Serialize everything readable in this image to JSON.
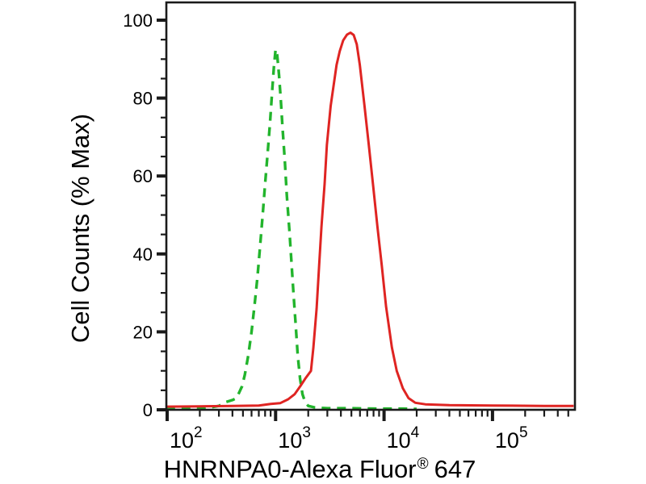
{
  "figure": {
    "background": "#ffffff",
    "xlabel_parts": {
      "main": "HNRNPA0-Alexa Fluor",
      "sup": "®",
      "tail": "647"
    }
  },
  "chart_data": {
    "type": "line",
    "subtype": "flow-cytometry-histogram-overlay",
    "title": "",
    "xlabel": "HNRNPA0-Alexa Fluor® 647",
    "ylabel": "Cell Counts (% Max)",
    "grid": false,
    "legend": null,
    "x_scale": "log",
    "x_axis": {
      "min": 98,
      "max": 575000,
      "major_ticks": [
        100,
        1000,
        10000,
        100000
      ],
      "tick_labels": [
        {
          "base": "10",
          "exp": "2"
        },
        {
          "base": "10",
          "exp": "3"
        },
        {
          "base": "10",
          "exp": "4"
        },
        {
          "base": "10",
          "exp": "5"
        }
      ],
      "minor_tick_multiples": [
        2,
        3,
        4,
        5,
        6,
        7,
        8,
        9
      ]
    },
    "y_axis": {
      "min": 0,
      "max": 104.6,
      "major_ticks": [
        0,
        20,
        40,
        60,
        80,
        100
      ],
      "tick_labels": [
        "0",
        "20",
        "40",
        "60",
        "80",
        "100"
      ],
      "minor_step": 5
    },
    "axis_color": "#1a1a1a",
    "series": [
      {
        "name": "green-dashed-control",
        "style": "dashed",
        "color": "#22b42c",
        "peak_x": 1000,
        "peak_y_pct": 92.5,
        "points": [
          [
            98,
            0.2
          ],
          [
            140,
            0.2
          ],
          [
            190,
            0.3
          ],
          [
            250,
            0.6
          ],
          [
            300,
            1
          ],
          [
            350,
            2
          ],
          [
            400,
            2.5
          ],
          [
            437,
            3
          ],
          [
            490,
            6
          ],
          [
            520,
            9
          ],
          [
            560,
            14
          ],
          [
            600,
            20
          ],
          [
            640,
            27
          ],
          [
            680,
            34
          ],
          [
            720,
            42
          ],
          [
            760,
            50
          ],
          [
            800,
            58
          ],
          [
            845,
            66
          ],
          [
            890,
            74
          ],
          [
            930,
            82
          ],
          [
            965,
            88
          ],
          [
            1000,
            92.5
          ],
          [
            1035,
            91
          ],
          [
            1075,
            86
          ],
          [
            1115,
            80
          ],
          [
            1160,
            72
          ],
          [
            1215,
            64
          ],
          [
            1270,
            55
          ],
          [
            1340,
            46
          ],
          [
            1400,
            38
          ],
          [
            1460,
            30
          ],
          [
            1530,
            22
          ],
          [
            1600,
            14
          ],
          [
            1680,
            8
          ],
          [
            1770,
            4
          ],
          [
            1870,
            2
          ],
          [
            2000,
            1
          ],
          [
            2300,
            0.6
          ],
          [
            3000,
            0.4
          ],
          [
            5000,
            0.4
          ],
          [
            9000,
            0.3
          ],
          [
            15000,
            0.3
          ],
          [
            20000,
            0.2
          ]
        ]
      },
      {
        "name": "red-solid-hnrnpa0",
        "style": "solid",
        "color": "#df2422",
        "peak_x": 4900,
        "peak_y_pct": 96.8,
        "points": [
          [
            98,
            0.8
          ],
          [
            200,
            0.9
          ],
          [
            400,
            1
          ],
          [
            700,
            1.1
          ],
          [
            900,
            1.5
          ],
          [
            1100,
            1.7
          ],
          [
            1305,
            2.7
          ],
          [
            1500,
            4
          ],
          [
            1683,
            6
          ],
          [
            1875,
            8
          ],
          [
            2120,
            10
          ],
          [
            2230,
            16
          ],
          [
            2390,
            26
          ],
          [
            2520,
            37
          ],
          [
            2650,
            47
          ],
          [
            2830,
            58
          ],
          [
            2970,
            68
          ],
          [
            3220,
            78
          ],
          [
            3650,
            88.5
          ],
          [
            3900,
            92
          ],
          [
            4200,
            94.8
          ],
          [
            4550,
            96.3
          ],
          [
            4900,
            96.8
          ],
          [
            5250,
            96.2
          ],
          [
            5600,
            93.8
          ],
          [
            5980,
            88.5
          ],
          [
            6600,
            78
          ],
          [
            7230,
            68
          ],
          [
            7930,
            57.5
          ],
          [
            8690,
            47
          ],
          [
            9530,
            37
          ],
          [
            10440,
            26.5
          ],
          [
            11800,
            16
          ],
          [
            13100,
            10
          ],
          [
            14900,
            5.5
          ],
          [
            16800,
            3
          ],
          [
            19400,
            1.8
          ],
          [
            24000,
            1.4
          ],
          [
            40000,
            1.2
          ],
          [
            100000,
            1.1
          ],
          [
            300000,
            1
          ],
          [
            560000,
            1
          ]
        ]
      }
    ]
  }
}
